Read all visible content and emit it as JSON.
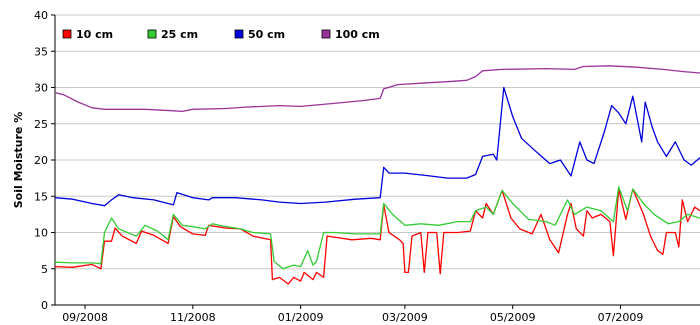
{
  "chart_data": {
    "type": "line",
    "title": "",
    "xlabel": "",
    "ylabel": "Soil Moisture %",
    "ylim": [
      0,
      40
    ],
    "xlim": [
      "2008-08-15",
      "2009-08-15"
    ],
    "yticks": [
      0,
      5,
      10,
      15,
      20,
      25,
      30,
      35,
      40
    ],
    "xticks": [
      {
        "date": "2008-09-01",
        "label": "09/2008"
      },
      {
        "date": "2008-11-01",
        "label": "11/2008"
      },
      {
        "date": "2009-01-01",
        "label": "01/2009"
      },
      {
        "date": "2009-03-01",
        "label": "03/2009"
      },
      {
        "date": "2009-05-01",
        "label": "05/2009"
      },
      {
        "date": "2009-07-01",
        "label": "07/2009"
      }
    ],
    "grid": "horizontal",
    "legend_position": "top-left",
    "series": [
      {
        "name": "10 cm",
        "color": "#ff0000",
        "points": [
          [
            "2008-08-15",
            5.3
          ],
          [
            "2008-08-25",
            5.2
          ],
          [
            "2008-09-05",
            5.6
          ],
          [
            "2008-09-10",
            5.0
          ],
          [
            "2008-09-12",
            8.8
          ],
          [
            "2008-09-16",
            8.8
          ],
          [
            "2008-09-18",
            10.6
          ],
          [
            "2008-09-22",
            9.5
          ],
          [
            "2008-09-30",
            8.5
          ],
          [
            "2008-10-03",
            10.2
          ],
          [
            "2008-10-10",
            9.6
          ],
          [
            "2008-10-18",
            8.5
          ],
          [
            "2008-10-21",
            12.2
          ],
          [
            "2008-10-25",
            10.8
          ],
          [
            "2008-11-01",
            9.8
          ],
          [
            "2008-11-08",
            9.6
          ],
          [
            "2008-11-10",
            11.0
          ],
          [
            "2008-11-20",
            10.6
          ],
          [
            "2008-11-28",
            10.5
          ],
          [
            "2008-12-05",
            9.5
          ],
          [
            "2008-12-15",
            9.0
          ],
          [
            "2008-12-16",
            3.5
          ],
          [
            "2008-12-20",
            3.8
          ],
          [
            "2008-12-25",
            2.9
          ],
          [
            "2008-12-28",
            3.8
          ],
          [
            "2009-01-01",
            3.3
          ],
          [
            "2009-01-03",
            4.5
          ],
          [
            "2009-01-08",
            3.5
          ],
          [
            "2009-01-10",
            4.5
          ],
          [
            "2009-01-14",
            3.8
          ],
          [
            "2009-01-16",
            9.5
          ],
          [
            "2009-01-22",
            9.3
          ],
          [
            "2009-01-30",
            9.0
          ],
          [
            "2009-02-10",
            9.2
          ],
          [
            "2009-02-15",
            9.0
          ],
          [
            "2009-02-17",
            13.8
          ],
          [
            "2009-02-20",
            10.0
          ],
          [
            "2009-02-26",
            9.0
          ],
          [
            "2009-02-28",
            8.5
          ],
          [
            "2009-03-01",
            4.5
          ],
          [
            "2009-03-03",
            4.5
          ],
          [
            "2009-03-05",
            9.5
          ],
          [
            "2009-03-10",
            10.0
          ],
          [
            "2009-03-12",
            4.5
          ],
          [
            "2009-03-14",
            10.0
          ],
          [
            "2009-03-19",
            10.0
          ],
          [
            "2009-03-21",
            4.3
          ],
          [
            "2009-03-23",
            10.0
          ],
          [
            "2009-03-31",
            10.0
          ],
          [
            "2009-04-07",
            10.2
          ],
          [
            "2009-04-10",
            13.0
          ],
          [
            "2009-04-14",
            12.0
          ],
          [
            "2009-04-16",
            14.0
          ],
          [
            "2009-04-20",
            12.5
          ],
          [
            "2009-04-25",
            15.8
          ],
          [
            "2009-04-30",
            12.0
          ],
          [
            "2009-05-05",
            10.5
          ],
          [
            "2009-05-12",
            9.8
          ],
          [
            "2009-05-17",
            12.5
          ],
          [
            "2009-05-22",
            9.0
          ],
          [
            "2009-05-27",
            7.2
          ],
          [
            "2009-06-01",
            12.5
          ],
          [
            "2009-06-03",
            14.0
          ],
          [
            "2009-06-06",
            10.5
          ],
          [
            "2009-06-10",
            9.5
          ],
          [
            "2009-06-12",
            13.0
          ],
          [
            "2009-06-15",
            12.0
          ],
          [
            "2009-06-20",
            12.5
          ],
          [
            "2009-06-25",
            11.5
          ],
          [
            "2009-06-27",
            6.8
          ],
          [
            "2009-06-30",
            16.0
          ],
          [
            "2009-07-04",
            11.8
          ],
          [
            "2009-07-08",
            16.0
          ],
          [
            "2009-07-14",
            12.5
          ],
          [
            "2009-07-18",
            9.5
          ],
          [
            "2009-07-22",
            7.5
          ],
          [
            "2009-07-25",
            7.0
          ],
          [
            "2009-07-27",
            10.0
          ],
          [
            "2009-08-01",
            10.0
          ],
          [
            "2009-08-03",
            8.0
          ],
          [
            "2009-08-05",
            14.5
          ],
          [
            "2009-08-08",
            11.5
          ],
          [
            "2009-08-12",
            13.5
          ],
          [
            "2009-08-15",
            13.0
          ]
        ]
      },
      {
        "name": "25 cm",
        "color": "#33cc33",
        "points": [
          [
            "2008-08-15",
            5.9
          ],
          [
            "2008-08-25",
            5.8
          ],
          [
            "2008-09-05",
            5.8
          ],
          [
            "2008-09-10",
            5.7
          ],
          [
            "2008-09-12",
            10.0
          ],
          [
            "2008-09-16",
            12.0
          ],
          [
            "2008-09-20",
            10.5
          ],
          [
            "2008-09-30",
            9.5
          ],
          [
            "2008-10-05",
            11.0
          ],
          [
            "2008-10-12",
            10.2
          ],
          [
            "2008-10-18",
            9.0
          ],
          [
            "2008-10-21",
            12.5
          ],
          [
            "2008-10-26",
            11.0
          ],
          [
            "2008-11-01",
            10.8
          ],
          [
            "2008-11-08",
            10.5
          ],
          [
            "2008-11-12",
            11.2
          ],
          [
            "2008-11-20",
            10.8
          ],
          [
            "2008-11-28",
            10.5
          ],
          [
            "2008-12-05",
            10.0
          ],
          [
            "2008-12-15",
            9.8
          ],
          [
            "2008-12-17",
            6.0
          ],
          [
            "2008-12-22",
            5.0
          ],
          [
            "2008-12-28",
            5.5
          ],
          [
            "2009-01-01",
            5.3
          ],
          [
            "2009-01-05",
            7.5
          ],
          [
            "2009-01-08",
            5.5
          ],
          [
            "2009-01-10",
            6.0
          ],
          [
            "2009-01-14",
            10.0
          ],
          [
            "2009-01-20",
            10.0
          ],
          [
            "2009-02-01",
            9.8
          ],
          [
            "2009-02-15",
            9.8
          ],
          [
            "2009-02-17",
            14.0
          ],
          [
            "2009-02-22",
            12.5
          ],
          [
            "2009-03-01",
            11.0
          ],
          [
            "2009-03-10",
            11.2
          ],
          [
            "2009-03-20",
            11.0
          ],
          [
            "2009-03-31",
            11.5
          ],
          [
            "2009-04-07",
            11.5
          ],
          [
            "2009-04-10",
            13.0
          ],
          [
            "2009-04-16",
            13.5
          ],
          [
            "2009-04-20",
            12.5
          ],
          [
            "2009-04-25",
            15.8
          ],
          [
            "2009-05-01",
            14.0
          ],
          [
            "2009-05-10",
            11.8
          ],
          [
            "2009-05-20",
            11.5
          ],
          [
            "2009-05-25",
            11.0
          ],
          [
            "2009-06-01",
            14.5
          ],
          [
            "2009-06-05",
            12.5
          ],
          [
            "2009-06-12",
            13.5
          ],
          [
            "2009-06-20",
            13.0
          ],
          [
            "2009-06-27",
            11.5
          ],
          [
            "2009-06-30",
            16.3
          ],
          [
            "2009-07-05",
            13.0
          ],
          [
            "2009-07-08",
            16.0
          ],
          [
            "2009-07-14",
            14.0
          ],
          [
            "2009-07-20",
            12.5
          ],
          [
            "2009-07-28",
            11.2
          ],
          [
            "2009-08-03",
            11.5
          ],
          [
            "2009-08-08",
            12.5
          ],
          [
            "2009-08-15",
            12.0
          ]
        ]
      },
      {
        "name": "50 cm",
        "color": "#0000dd",
        "points": [
          [
            "2008-08-15",
            14.8
          ],
          [
            "2008-08-25",
            14.6
          ],
          [
            "2008-09-05",
            14.0
          ],
          [
            "2008-09-12",
            13.7
          ],
          [
            "2008-09-16",
            14.5
          ],
          [
            "2008-09-20",
            15.2
          ],
          [
            "2008-09-28",
            14.8
          ],
          [
            "2008-10-10",
            14.5
          ],
          [
            "2008-10-21",
            13.8
          ],
          [
            "2008-10-23",
            15.5
          ],
          [
            "2008-11-01",
            14.8
          ],
          [
            "2008-11-10",
            14.5
          ],
          [
            "2008-11-12",
            14.8
          ],
          [
            "2008-11-25",
            14.8
          ],
          [
            "2008-12-10",
            14.5
          ],
          [
            "2008-12-20",
            14.2
          ],
          [
            "2009-01-01",
            14.0
          ],
          [
            "2009-01-15",
            14.2
          ],
          [
            "2009-02-01",
            14.6
          ],
          [
            "2009-02-15",
            14.8
          ],
          [
            "2009-02-17",
            19.0
          ],
          [
            "2009-02-20",
            18.2
          ],
          [
            "2009-03-01",
            18.2
          ],
          [
            "2009-03-15",
            17.8
          ],
          [
            "2009-03-25",
            17.5
          ],
          [
            "2009-04-05",
            17.5
          ],
          [
            "2009-04-10",
            18.0
          ],
          [
            "2009-04-14",
            20.5
          ],
          [
            "2009-04-20",
            20.8
          ],
          [
            "2009-04-22",
            20.0
          ],
          [
            "2009-04-26",
            30.0
          ],
          [
            "2009-05-01",
            26.0
          ],
          [
            "2009-05-06",
            23.0
          ],
          [
            "2009-05-15",
            21.0
          ],
          [
            "2009-05-22",
            19.5
          ],
          [
            "2009-05-28",
            20.0
          ],
          [
            "2009-06-03",
            17.8
          ],
          [
            "2009-06-08",
            22.5
          ],
          [
            "2009-06-12",
            20.0
          ],
          [
            "2009-06-16",
            19.5
          ],
          [
            "2009-06-22",
            24.0
          ],
          [
            "2009-06-26",
            27.5
          ],
          [
            "2009-06-30",
            26.5
          ],
          [
            "2009-07-04",
            25.0
          ],
          [
            "2009-07-08",
            28.8
          ],
          [
            "2009-07-13",
            22.5
          ],
          [
            "2009-07-15",
            28.0
          ],
          [
            "2009-07-19",
            24.5
          ],
          [
            "2009-07-22",
            22.5
          ],
          [
            "2009-07-27",
            20.5
          ],
          [
            "2009-08-01",
            22.5
          ],
          [
            "2009-08-06",
            20.0
          ],
          [
            "2009-08-10",
            19.3
          ],
          [
            "2009-08-15",
            20.3
          ]
        ]
      },
      {
        "name": "100 cm",
        "color": "#993399",
        "points": [
          [
            "2008-08-15",
            29.3
          ],
          [
            "2008-08-20",
            29.0
          ],
          [
            "2008-08-28",
            28.0
          ],
          [
            "2008-09-05",
            27.2
          ],
          [
            "2008-09-12",
            27.0
          ],
          [
            "2008-09-25",
            27.0
          ],
          [
            "2008-10-05",
            27.0
          ],
          [
            "2008-10-20",
            26.8
          ],
          [
            "2008-10-26",
            26.7
          ],
          [
            "2008-11-01",
            27.0
          ],
          [
            "2008-11-20",
            27.1
          ],
          [
            "2008-12-01",
            27.3
          ],
          [
            "2008-12-20",
            27.5
          ],
          [
            "2009-01-01",
            27.4
          ],
          [
            "2009-01-20",
            27.8
          ],
          [
            "2009-02-05",
            28.2
          ],
          [
            "2009-02-15",
            28.5
          ],
          [
            "2009-02-17",
            29.8
          ],
          [
            "2009-02-25",
            30.4
          ],
          [
            "2009-03-10",
            30.6
          ],
          [
            "2009-03-25",
            30.8
          ],
          [
            "2009-04-05",
            31.0
          ],
          [
            "2009-04-10",
            31.5
          ],
          [
            "2009-04-14",
            32.3
          ],
          [
            "2009-04-25",
            32.5
          ],
          [
            "2009-05-20",
            32.6
          ],
          [
            "2009-06-05",
            32.5
          ],
          [
            "2009-06-10",
            32.9
          ],
          [
            "2009-06-25",
            33.0
          ],
          [
            "2009-07-10",
            32.8
          ],
          [
            "2009-07-25",
            32.5
          ],
          [
            "2009-08-05",
            32.2
          ],
          [
            "2009-08-15",
            32.0
          ]
        ]
      }
    ]
  }
}
